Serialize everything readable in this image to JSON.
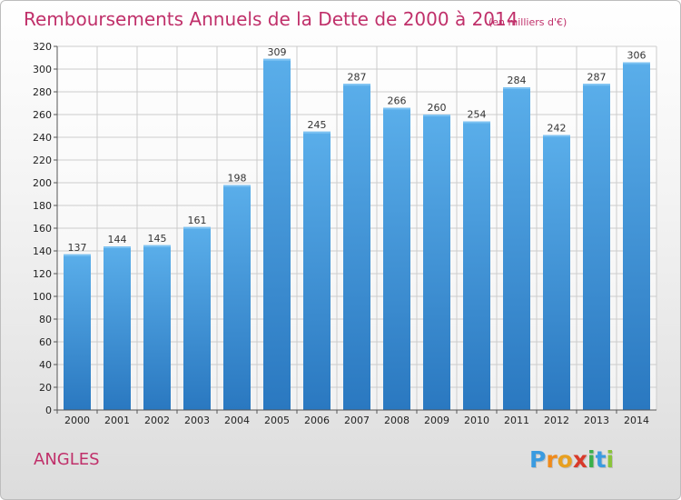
{
  "chart_data": {
    "type": "bar",
    "title": "Remboursements Annuels de la Dette de 2000 à 2014",
    "subtitle": "(en milliers d'€)",
    "categories": [
      "2000",
      "2001",
      "2002",
      "2003",
      "2004",
      "2005",
      "2006",
      "2007",
      "2008",
      "2009",
      "2010",
      "2011",
      "2012",
      "2013",
      "2014"
    ],
    "values": [
      137,
      144,
      145,
      161,
      198,
      309,
      245,
      287,
      266,
      260,
      254,
      284,
      242,
      287,
      306
    ],
    "ylim": [
      0,
      320
    ],
    "yticks": [
      0,
      20,
      40,
      60,
      80,
      100,
      120,
      140,
      160,
      180,
      200,
      220,
      240,
      260,
      280,
      300,
      320
    ],
    "grid": true,
    "bar_color": "#3b8fd8",
    "legend": "none"
  },
  "commune": "ANGLES",
  "logo": {
    "letters": [
      "P",
      "r",
      "o",
      "x",
      "i",
      "t",
      "i"
    ],
    "colors": [
      "#3a9be0",
      "#f08a1a",
      "#e8a020",
      "#d83a2a",
      "#3ab04a",
      "#3a9be0",
      "#8ac43a"
    ]
  },
  "colors": {
    "title": "#c0306a",
    "axis": "#555555",
    "grid": "#cccccc"
  }
}
